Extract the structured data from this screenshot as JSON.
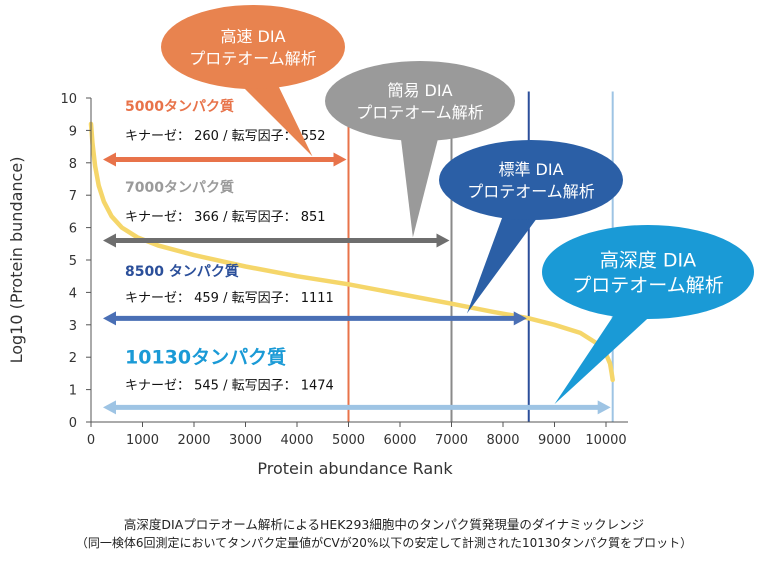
{
  "chart_data": {
    "type": "line",
    "xlabel": "Protein abundance Rank",
    "ylabel": "Log10 (Protein bundance)",
    "xlim": [
      0,
      10300
    ],
    "ylim": [
      0,
      10
    ],
    "x_ticks": [
      "0",
      "1000",
      "2000",
      "3000",
      "4000",
      "5000",
      "6000",
      "7000",
      "8000",
      "9000",
      "10000"
    ],
    "y_ticks": [
      "0",
      "1",
      "2",
      "3",
      "4",
      "5",
      "6",
      "7",
      "8",
      "9",
      "10"
    ],
    "grid": false,
    "curve_color": "#f5d66a",
    "series": [
      {
        "x": [
          0,
          30,
          80,
          150,
          250,
          400,
          600,
          900,
          1300,
          2000,
          3000,
          4000,
          5000,
          6000,
          7000,
          7800,
          8500,
          9000,
          9500,
          9800,
          10000,
          10080,
          10110,
          10130
        ],
        "y": [
          9.2,
          8.6,
          7.9,
          7.3,
          6.8,
          6.35,
          6.0,
          5.7,
          5.45,
          5.15,
          4.8,
          4.5,
          4.25,
          3.95,
          3.65,
          3.4,
          3.2,
          3.0,
          2.75,
          2.45,
          2.1,
          1.8,
          1.5,
          1.3
        ]
      }
    ],
    "vertical_lines": [
      {
        "x": 5000,
        "color": "#e8734a"
      },
      {
        "x": 7000,
        "color": "#8a8a8a"
      },
      {
        "x": 8500,
        "color": "#2b4f9a"
      },
      {
        "x": 10130,
        "color": "#9ec4e4"
      }
    ],
    "ranges": [
      {
        "x_start": 0,
        "x_end": 5000,
        "y": 8.1,
        "color": "#e8734a",
        "title": "5000タンパク質",
        "title_y": 9.6,
        "detail": "キナーゼ： 260 / 転写因子： 552",
        "detail_y": 8.7
      },
      {
        "x_start": 0,
        "x_end": 7000,
        "y": 5.6,
        "color": "#6e6e6e",
        "title_color": "#9a9a9a",
        "title": "7000タンパク質",
        "title_y": 7.1,
        "detail": "キナーゼ： 366 / 転写因子： 851",
        "detail_y": 6.2
      },
      {
        "x_start": 0,
        "x_end": 8500,
        "y": 3.2,
        "color": "#4a6fb5",
        "title_color": "#2b4f9a",
        "title": "8500 タンパク質",
        "title_y": 4.5,
        "detail": "キナーゼ： 459 / 転写因子： 1111",
        "detail_y": 3.7
      },
      {
        "x_start": 0,
        "x_end": 10130,
        "y": 0.45,
        "color": "#9ec4e4",
        "title_color": "#1a9ad6",
        "title": "10130タンパク質",
        "title_y": 1.8,
        "big": true,
        "detail": "キナーゼ： 545 / 転写因子： 1474",
        "detail_y": 1.0
      }
    ],
    "annotations": [
      {
        "lines": [
          "高速 DIA",
          "プロテオーム解析"
        ],
        "color": "#e8834f",
        "tip_x": 4300,
        "tip_y": 8.2,
        "font": 16
      },
      {
        "lines": [
          "簡易 DIA",
          "プロテオーム解析"
        ],
        "color": "#9a9a9a",
        "tip_x": 6250,
        "tip_y": 5.7,
        "font": 16
      },
      {
        "lines": [
          "標準 DIA",
          "プロテオーム解析"
        ],
        "color": "#2b5fa6",
        "tip_x": 7300,
        "tip_y": 3.35,
        "font": 16
      },
      {
        "lines": [
          "高深度 DIA",
          "プロテオーム解析"
        ],
        "color": "#1a9ad6",
        "tip_x": 9000,
        "tip_y": 0.55,
        "font": 19
      }
    ]
  },
  "caption": {
    "line1": "高深度DIAプロテオーム解析によるHEK293細胞中のタンパク質発現量のダイナミックレンジ",
    "line2": "（同一検体6回測定においてタンパク定量値がCVが20%以下の安定して計測された10130タンパク質をプロット）"
  }
}
